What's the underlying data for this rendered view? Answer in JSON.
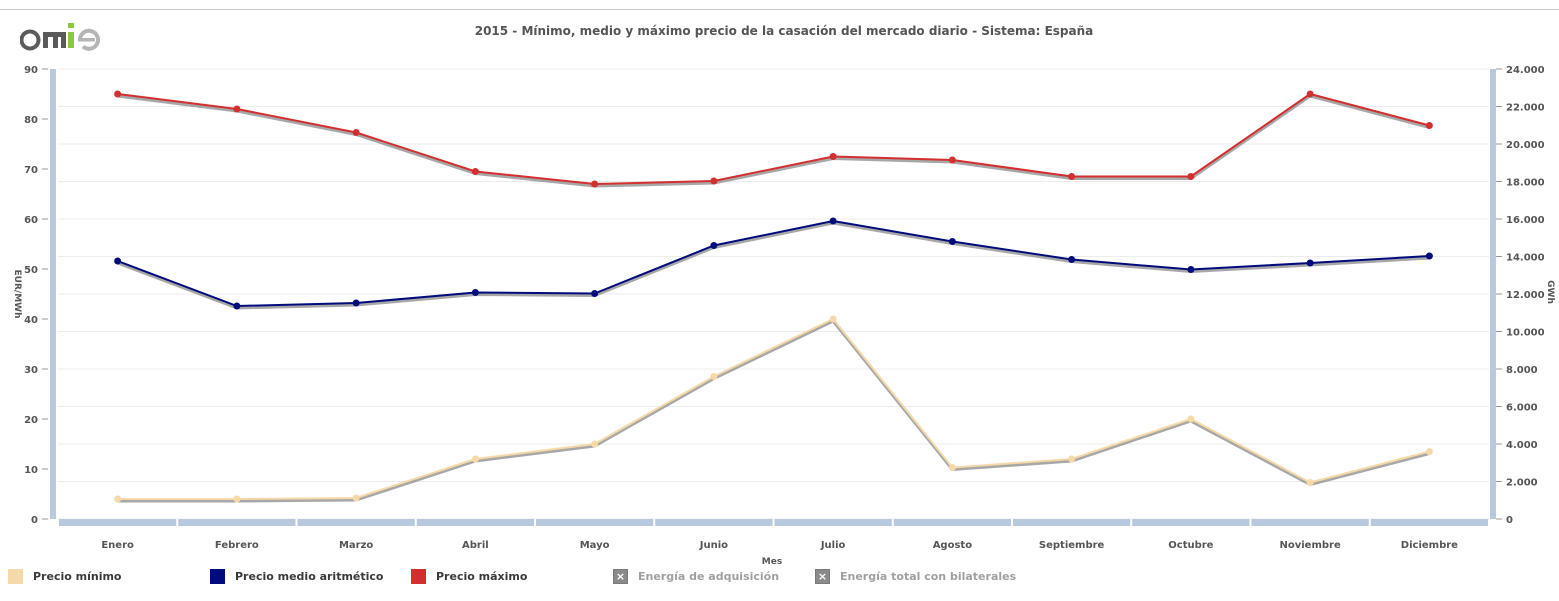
{
  "header": {
    "logo_text": "omie",
    "title": "2015 - Mínimo, medio y máximo precio de la casación del mercado diario - Sistema: España"
  },
  "chart_data": {
    "type": "line",
    "title": "2015 - Mínimo, medio y máximo precio de la casación del mercado diario - Sistema: España",
    "xlabel": "Mes",
    "ylabel": "EUR/MWh",
    "y2label": "GWh",
    "categories": [
      "Enero",
      "Febrero",
      "Marzo",
      "Abril",
      "Mayo",
      "Junio",
      "Julio",
      "Agosto",
      "Septiembre",
      "Octubre",
      "Noviembre",
      "Diciembre"
    ],
    "ylim": [
      0,
      90
    ],
    "yticks": [
      "0",
      "10",
      "20",
      "30",
      "40",
      "50",
      "60",
      "70",
      "80",
      "90"
    ],
    "y2lim": [
      0,
      24000
    ],
    "y2ticks": [
      "0",
      "2.000",
      "4.000",
      "6.000",
      "8.000",
      "10.000",
      "12.000",
      "14.000",
      "16.000",
      "18.000",
      "20.000",
      "22.000",
      "24.000"
    ],
    "grid": true,
    "legend_position": "bottom-left",
    "series": [
      {
        "name": "Precio mínimo",
        "color": "#f5d9a8",
        "values": [
          4,
          4,
          4.2,
          12,
          15,
          28.5,
          40,
          10.3,
          12,
          20,
          7.3,
          13.5
        ]
      },
      {
        "name": "Precio medio aritmético",
        "color": "#000c7b",
        "values": [
          51.6,
          42.6,
          43.2,
          45.3,
          45.1,
          54.7,
          59.6,
          55.5,
          51.9,
          49.9,
          51.2,
          52.6
        ]
      },
      {
        "name": "Precio máximo",
        "color": "#d32f2f",
        "values": [
          85,
          82,
          77.3,
          69.5,
          67,
          67.6,
          72.5,
          71.8,
          68.5,
          68.5,
          85,
          78.7
        ]
      }
    ],
    "hidden_series": [
      "Energía de adquisición",
      "Energía total con bilaterales"
    ]
  },
  "legend": {
    "items": [
      {
        "label": "Precio mínimo",
        "color": "#f5d9a8"
      },
      {
        "label": "Precio medio aritmético",
        "color": "#000c7b"
      },
      {
        "label": "Precio máximo",
        "color": "#d32f2f"
      },
      {
        "label": "Energía de adquisición",
        "color": "#8a8a8a"
      },
      {
        "label": "Energía total con bilaterales",
        "color": "#8a8a8a"
      }
    ],
    "disabled_mark": "×"
  }
}
